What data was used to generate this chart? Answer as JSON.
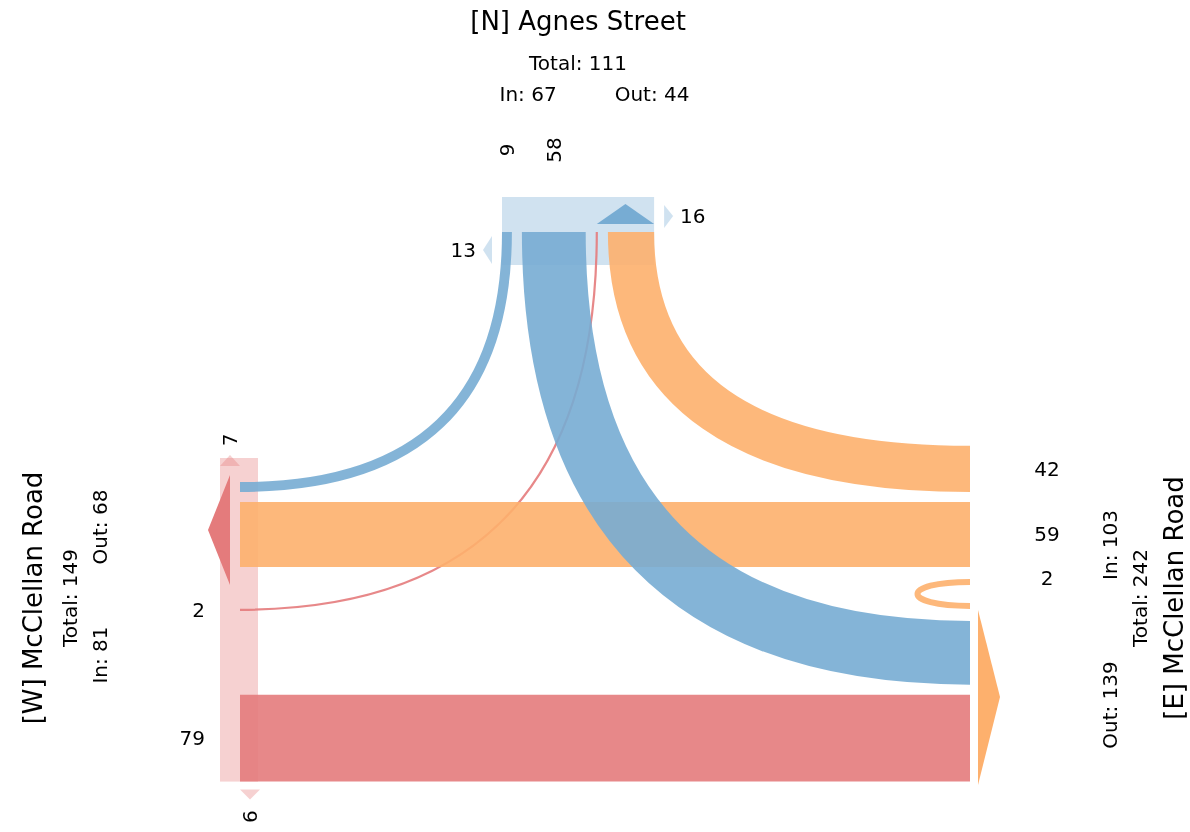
{
  "chart_data": {
    "type": "other",
    "categories": [
      "[N] Agnes Street",
      "[W] McClellan Road",
      "[E] McClellan Road"
    ],
    "series": [
      {
        "colors": [
          null,
          "#e47b7c",
          "#fdb06d"
        ],
        "values": [
          null,
          2,
          42
        ]
      },
      {
        "colors": [
          "#77acd3",
          null,
          "#fdb06d"
        ],
        "values": [
          9,
          null,
          59
        ]
      },
      {
        "colors": [
          "#77acd3",
          "#e47b7c",
          "#fdb06d"
        ],
        "values": [
          58,
          79,
          2
        ]
      }
    ],
    "data_labels": true,
    "annotations": [
      "Total: 111",
      "In: 67",
      "Out: 44",
      "Total: 149",
      "In: 81",
      "Out: 68",
      "Total: 242",
      "In: 103",
      "Out: 139",
      "16",
      "13",
      "7",
      "6"
    ]
  }
}
